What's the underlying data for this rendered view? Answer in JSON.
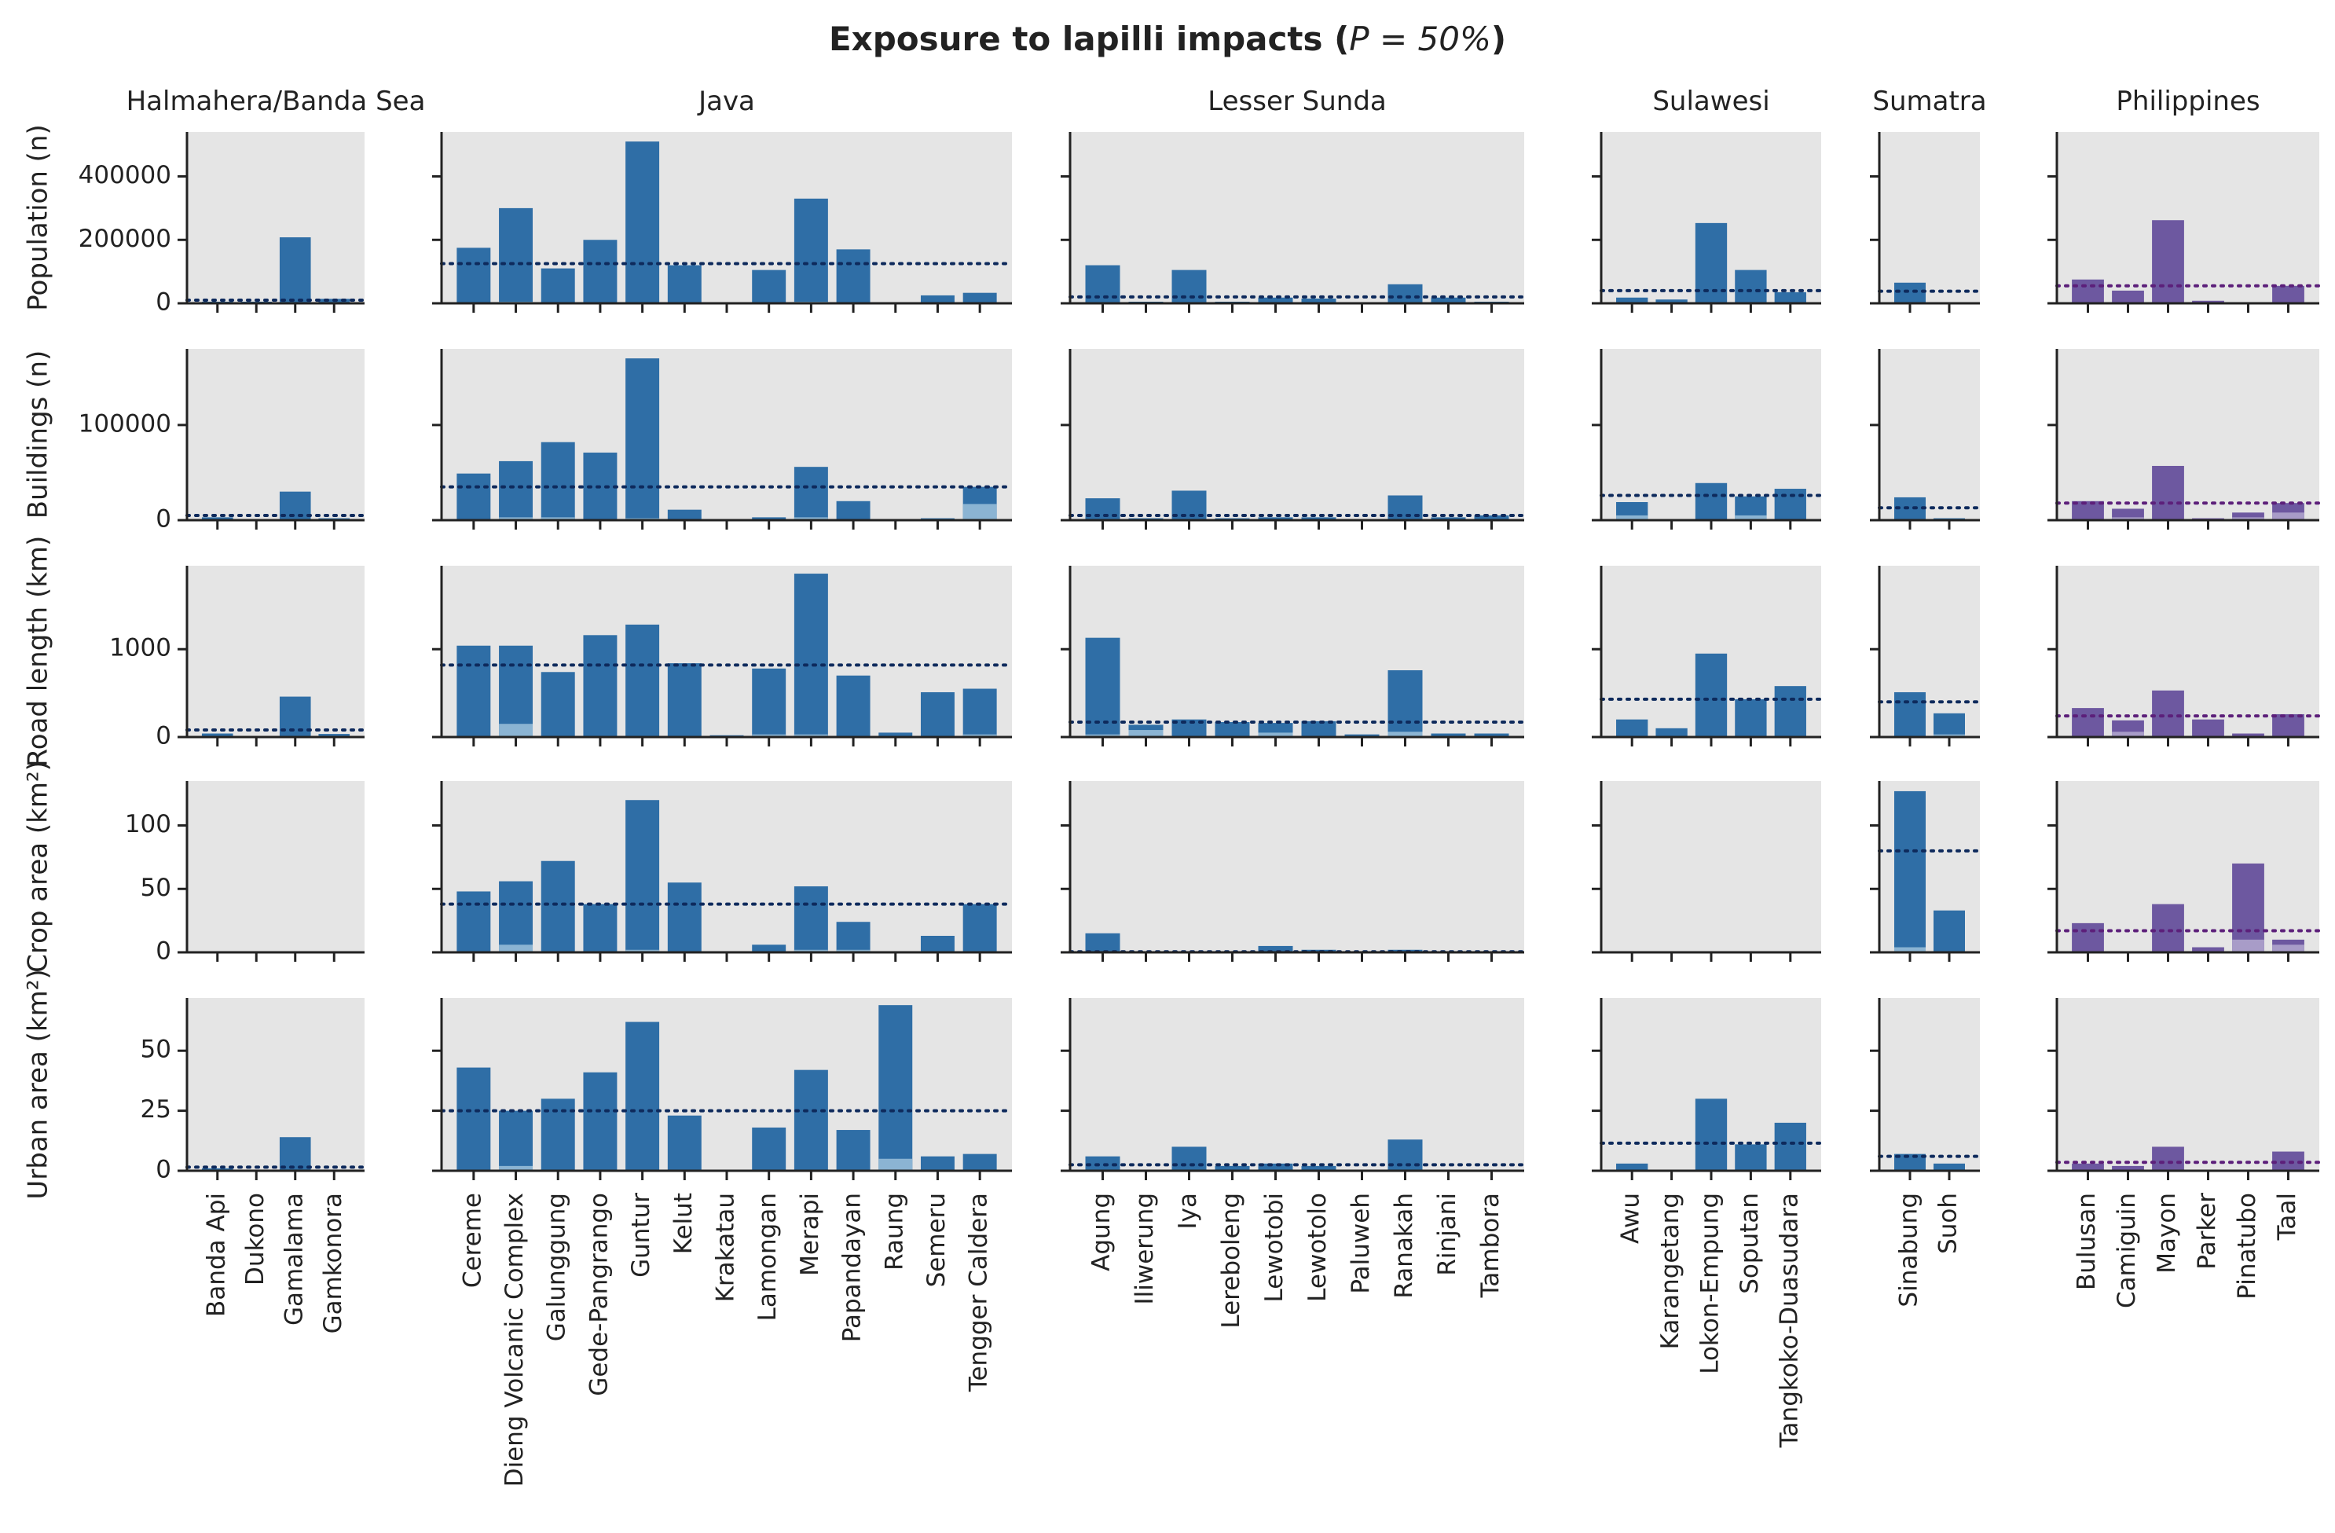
{
  "chart_data": {
    "type": "bar",
    "title_main": "Exposure to lapilli impacts (",
    "title_math": "P = 50%",
    "title_end": ")",
    "colors": {
      "asia_bar": "#2f6ea6",
      "asia_inner": "#8bb4d3",
      "asia_mean": "#0e2a5c",
      "ph_bar": "#6d58a0",
      "ph_inner": "#a89cc8",
      "ph_mean": "#5c1f7a",
      "panel_bg": "#e5e5e5"
    },
    "rows": [
      {
        "key": "pop",
        "label": "Population (n)",
        "ylim": [
          0,
          540000
        ],
        "ticks": [
          0,
          200000,
          400000
        ],
        "tick_labels": [
          "0",
          "200000",
          "400000"
        ]
      },
      {
        "key": "bld",
        "label": "Buildings (n)",
        "ylim": [
          0,
          180000
        ],
        "ticks": [
          0,
          100000
        ],
        "tick_labels": [
          "0",
          "100000"
        ]
      },
      {
        "key": "road",
        "label": "Road length (km)",
        "ylim": [
          0,
          1950
        ],
        "ticks": [
          0,
          1000
        ],
        "tick_labels": [
          "0",
          "1000"
        ]
      },
      {
        "key": "crop",
        "label": "Crop area (km²)",
        "ylim": [
          0,
          135
        ],
        "ticks": [
          0,
          50,
          100
        ],
        "tick_labels": [
          "0",
          "50",
          "100"
        ]
      },
      {
        "key": "urban",
        "label": "Urban area (km²)",
        "ylim": [
          0,
          72
        ],
        "ticks": [
          0,
          25,
          50
        ],
        "tick_labels": [
          "0",
          "25",
          "50"
        ]
      }
    ],
    "groups": [
      {
        "name": "Halmahera/Banda Sea",
        "palette": "asia",
        "volcanoes": [
          "Banda Api",
          "Dukono",
          "Gamalama",
          "Gamkonora"
        ],
        "values": {
          "pop": [
            5000,
            5000,
            208000,
            14000
          ],
          "bld": [
            3000,
            0,
            30000,
            2000
          ],
          "road": [
            40,
            0,
            460,
            35
          ],
          "crop": [
            0,
            0,
            0,
            0
          ],
          "urban": [
            1,
            0,
            14,
            0.5
          ]
        },
        "inner": {
          "pop": [
            0,
            0,
            0,
            0
          ],
          "bld": [
            0,
            0,
            0,
            0
          ],
          "road": [
            0,
            0,
            0,
            0
          ],
          "crop": [
            0,
            0,
            0,
            0
          ],
          "urban": [
            0,
            0,
            0,
            0
          ]
        },
        "mean": {
          "pop": 10000,
          "bld": 5000,
          "road": 80,
          "crop": 0,
          "urban": 1.5
        }
      },
      {
        "name": "Java",
        "palette": "asia",
        "volcanoes": [
          "Cereme",
          "Dieng Volcanic Complex",
          "Galunggung",
          "Gede-Pangrango",
          "Guntur",
          "Kelut",
          "Krakatau",
          "Lamongan",
          "Merapi",
          "Papandayan",
          "Raung",
          "Semeru",
          "Tengger Caldera"
        ],
        "values": {
          "pop": [
            175000,
            300000,
            110000,
            200000,
            510000,
            120000,
            2000,
            105000,
            330000,
            170000,
            3000,
            25000,
            33000
          ],
          "bld": [
            49000,
            62000,
            82000,
            71000,
            170000,
            11000,
            500,
            3000,
            56000,
            20000,
            1000,
            2000,
            35000
          ],
          "road": [
            1040,
            1040,
            740,
            1160,
            1280,
            840,
            20,
            780,
            1860,
            700,
            50,
            510,
            550
          ],
          "crop": [
            48,
            56,
            72,
            38,
            120,
            55,
            0,
            6,
            52,
            24,
            0,
            13,
            38
          ],
          "urban": [
            43,
            25,
            30,
            41,
            62,
            23,
            0,
            18,
            42,
            17,
            69,
            6,
            7
          ]
        },
        "inner": {
          "pop": [
            0,
            5000,
            0,
            0,
            0,
            0,
            0,
            0,
            5000,
            0,
            0,
            0,
            0
          ],
          "bld": [
            0,
            3000,
            3000,
            0,
            2000,
            0,
            0,
            0,
            3000,
            0,
            0,
            0,
            17000
          ],
          "road": [
            0,
            150,
            0,
            0,
            0,
            0,
            0,
            30,
            30,
            0,
            0,
            0,
            30
          ],
          "crop": [
            0,
            6,
            0,
            0,
            2,
            0,
            0,
            0,
            2,
            2,
            0,
            0,
            0
          ],
          "urban": [
            0,
            2,
            0,
            0,
            0,
            0,
            0,
            0,
            0,
            0,
            5,
            0,
            0
          ]
        },
        "mean": {
          "pop": 125000,
          "bld": 35000,
          "road": 820,
          "crop": 38,
          "urban": 25
        }
      },
      {
        "name": "Lesser Sunda",
        "palette": "asia",
        "volcanoes": [
          "Agung",
          "Iliwerung",
          "Iya",
          "Lereboleng",
          "Lewotobi",
          "Lewotolo",
          "Paluweh",
          "Ranakah",
          "Rinjani",
          "Tambora"
        ],
        "values": {
          "pop": [
            120000,
            5000,
            105000,
            5000,
            18000,
            15000,
            3000,
            60000,
            18000,
            5000
          ],
          "bld": [
            23000,
            2000,
            31000,
            2000,
            3000,
            3000,
            1000,
            26000,
            3000,
            5000
          ],
          "road": [
            1130,
            140,
            200,
            170,
            160,
            180,
            30,
            760,
            40,
            40
          ],
          "crop": [
            15,
            0,
            0,
            0,
            5,
            2,
            0,
            2,
            0,
            0
          ],
          "urban": [
            6,
            0,
            10,
            2,
            3,
            2,
            0,
            13,
            0,
            0
          ]
        },
        "inner": {
          "pop": [
            0,
            0,
            0,
            0,
            0,
            0,
            0,
            0,
            0,
            0
          ],
          "bld": [
            0,
            0,
            0,
            0,
            0,
            0,
            0,
            0,
            0,
            0
          ],
          "road": [
            30,
            80,
            0,
            0,
            50,
            0,
            0,
            60,
            0,
            0
          ],
          "crop": [
            0,
            0,
            0,
            0,
            0,
            0,
            0,
            0,
            0,
            0
          ],
          "urban": [
            0,
            0,
            0,
            0,
            0,
            0,
            0,
            0,
            0,
            0
          ]
        },
        "mean": {
          "pop": 20000,
          "bld": 5000,
          "road": 170,
          "crop": 0.5,
          "urban": 2.5
        }
      },
      {
        "name": "Sulawesi",
        "palette": "asia",
        "volcanoes": [
          "Awu",
          "Karangetang",
          "Lokon-Empung",
          "Soputan",
          "Tangkoko-Duasudara"
        ],
        "values": {
          "pop": [
            18000,
            12000,
            253000,
            105000,
            35000
          ],
          "bld": [
            19000,
            1000,
            39000,
            25000,
            33000
          ],
          "road": [
            200,
            100,
            950,
            430,
            580
          ],
          "crop": [
            0,
            0,
            0,
            0,
            0
          ],
          "urban": [
            3,
            0,
            30,
            11,
            20
          ]
        },
        "inner": {
          "pop": [
            0,
            0,
            0,
            0,
            0
          ],
          "bld": [
            5000,
            0,
            0,
            5000,
            0
          ],
          "road": [
            0,
            0,
            0,
            0,
            0
          ],
          "crop": [
            0,
            0,
            0,
            0,
            0
          ],
          "urban": [
            0,
            0,
            0,
            0,
            0
          ]
        },
        "mean": {
          "pop": 40000,
          "bld": 26000,
          "road": 430,
          "crop": 0,
          "urban": 11.5
        }
      },
      {
        "name": "Sumatra",
        "palette": "asia",
        "volcanoes": [
          "Sinabung",
          "Suoh"
        ],
        "values": {
          "pop": [
            65000,
            3000
          ],
          "bld": [
            24000,
            2000
          ],
          "road": [
            510,
            270
          ],
          "crop": [
            127,
            33
          ],
          "urban": [
            7,
            3
          ]
        },
        "inner": {
          "pop": [
            0,
            0
          ],
          "bld": [
            0,
            0
          ],
          "road": [
            0,
            30
          ],
          "crop": [
            4,
            0
          ],
          "urban": [
            0,
            0
          ]
        },
        "mean": {
          "pop": 38000,
          "bld": 13000,
          "road": 400,
          "crop": 80,
          "urban": 6
        }
      },
      {
        "name": "Philippines",
        "palette": "ph",
        "volcanoes": [
          "Bulusan",
          "Camiguin",
          "Mayon",
          "Parker",
          "Pinatubo",
          "Taal"
        ],
        "values": {
          "pop": [
            75000,
            40000,
            262000,
            8000,
            3000,
            55000
          ],
          "bld": [
            20000,
            12000,
            57000,
            2000,
            8000,
            18000
          ],
          "road": [
            330,
            190,
            530,
            200,
            40,
            260
          ],
          "crop": [
            23,
            0,
            38,
            4,
            70,
            10
          ],
          "urban": [
            3,
            2,
            10,
            0,
            0,
            8
          ]
        },
        "inner": {
          "pop": [
            0,
            0,
            0,
            0,
            0,
            0
          ],
          "bld": [
            0,
            3000,
            0,
            0,
            3000,
            8000
          ],
          "road": [
            0,
            60,
            0,
            0,
            0,
            0
          ],
          "crop": [
            0,
            0,
            0,
            0,
            10,
            6
          ],
          "urban": [
            0,
            0,
            0,
            0,
            0,
            0
          ]
        },
        "mean": {
          "pop": 55000,
          "bld": 18000,
          "road": 240,
          "crop": 17,
          "urban": 3.5
        }
      }
    ]
  }
}
